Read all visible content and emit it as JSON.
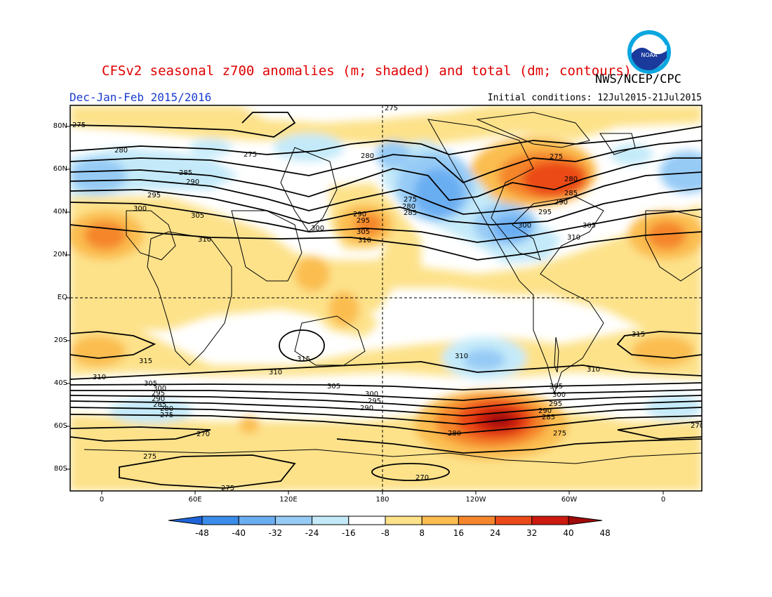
{
  "header": {
    "title": "CFSv2 seasonal z700 anomalies (m; shaded) and total (dm; contours)",
    "agency": "NWS/NCEP/CPC",
    "period": "Dec-Jan-Feb 2015/2016",
    "initial_conditions": "Initial conditions: 12Jul2015-21Jul2015",
    "logo_text": "NOAA"
  },
  "axes": {
    "lat_labels": [
      "80N",
      "60N",
      "40N",
      "20N",
      "EQ",
      "20S",
      "40S",
      "60S",
      "80S"
    ],
    "lon_labels": [
      "0",
      "60E",
      "120E",
      "180",
      "120W",
      "60W",
      "0"
    ]
  },
  "colorbar": {
    "labels": [
      "-48",
      "-40",
      "-32",
      "-24",
      "-16",
      "-8",
      "8",
      "16",
      "24",
      "32",
      "40",
      "48"
    ],
    "colors": [
      "#1e64d8",
      "#3c8cea",
      "#6aaef2",
      "#96cbf6",
      "#c4eaf9",
      "#ffffff",
      "#fde28a",
      "#fbbd4f",
      "#f5862c",
      "#eb4a18",
      "#cc1a10",
      "#a00a0a"
    ]
  },
  "contour_labels": [
    "275",
    "280",
    "285",
    "290",
    "295",
    "300",
    "305",
    "310",
    "315",
    "270"
  ],
  "colors": {
    "title": "#e00000",
    "period": "#1a3ccf",
    "missing_background": "#ffffff"
  }
}
